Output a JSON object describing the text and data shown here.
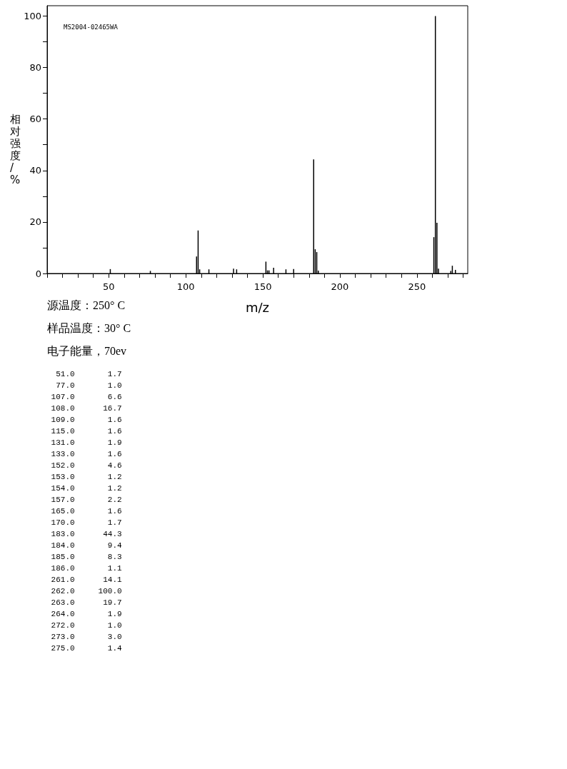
{
  "chart_data": {
    "type": "bar",
    "xlabel": "m/z",
    "ylabel": "相对强度/%",
    "x": [
      51,
      77,
      107,
      108,
      109,
      115,
      131,
      133,
      152,
      153,
      154,
      157,
      165,
      170,
      183,
      184,
      185,
      186,
      261,
      262,
      263,
      264,
      272,
      273,
      275
    ],
    "values": [
      1.7,
      1.0,
      6.6,
      16.7,
      1.6,
      1.6,
      1.9,
      1.6,
      4.6,
      1.2,
      1.2,
      2.2,
      1.6,
      1.7,
      44.3,
      9.4,
      8.3,
      1.1,
      14.1,
      100.0,
      19.7,
      1.9,
      1.0,
      3.0,
      1.4
    ],
    "color": "#000000",
    "xlim": [
      10,
      283
    ],
    "xticks": [
      {
        "value": 10,
        "label": null
      },
      {
        "value": 20,
        "label": null
      },
      {
        "value": 30,
        "label": null
      },
      {
        "value": 40,
        "label": null
      },
      50,
      {
        "value": 60,
        "label": null
      },
      {
        "value": 70,
        "label": null
      },
      {
        "value": 80,
        "label": null
      },
      {
        "value": 90,
        "label": null
      },
      100,
      {
        "value": 110,
        "label": null
      },
      {
        "value": 120,
        "label": null
      },
      {
        "value": 130,
        "label": null
      },
      {
        "value": 140,
        "label": null
      },
      150,
      {
        "value": 160,
        "label": null
      },
      {
        "value": 170,
        "label": null
      },
      {
        "value": 180,
        "label": null
      },
      {
        "value": 190,
        "label": null
      },
      200,
      {
        "value": 210,
        "label": null
      },
      {
        "value": 220,
        "label": null
      },
      {
        "value": 230,
        "label": null
      },
      {
        "value": 240,
        "label": null
      },
      250,
      {
        "value": 260,
        "label": null
      },
      {
        "value": 270,
        "label": null
      },
      {
        "value": 280,
        "label": null
      }
    ],
    "ylim": [
      0,
      104
    ],
    "yticks": [
      0,
      {
        "value": 10,
        "label": null
      },
      20,
      {
        "value": 30,
        "label": null
      },
      40,
      {
        "value": 50,
        "label": null
      },
      60,
      {
        "value": 70,
        "label": null
      },
      80,
      {
        "value": 90,
        "label": null
      },
      100
    ],
    "grid": false,
    "annotations": [
      "MS2004-02465WA",
      "源温度：250° C",
      "样品温度：30° C",
      "电子能量，70ev",
      "  51.0       1.7",
      "  77.0       1.0",
      " 107.0       6.6",
      " 108.0      16.7",
      " 109.0       1.6",
      " 115.0       1.6",
      " 131.0       1.9",
      " 133.0       1.6",
      " 152.0       4.6",
      " 153.0       1.2",
      " 154.0       1.2",
      " 157.0       2.2",
      " 165.0       1.6",
      " 170.0       1.7",
      " 183.0      44.3",
      " 184.0       9.4",
      " 185.0       8.3",
      " 186.0       1.1",
      " 261.0      14.1",
      " 262.0     100.0",
      " 263.0      19.7",
      " 264.0       1.9",
      " 272.0       1.0",
      " 273.0       3.0",
      " 275.0       1.4"
    ]
  }
}
